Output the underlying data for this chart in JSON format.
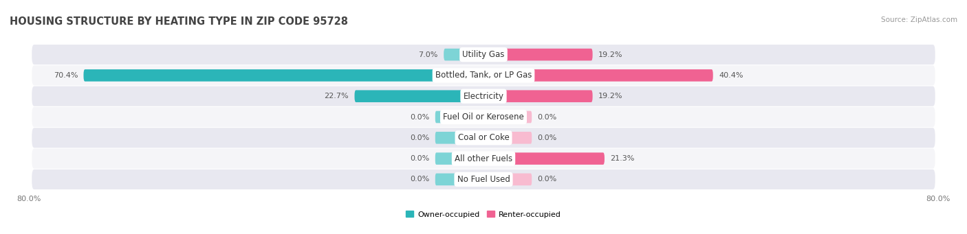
{
  "title": "Housing Structure by Heating Type in Zip Code 95728",
  "source": "Source: ZipAtlas.com",
  "categories": [
    "Utility Gas",
    "Bottled, Tank, or LP Gas",
    "Electricity",
    "Fuel Oil or Kerosene",
    "Coal or Coke",
    "All other Fuels",
    "No Fuel Used"
  ],
  "owner_values": [
    7.0,
    70.4,
    22.7,
    0.0,
    0.0,
    0.0,
    0.0
  ],
  "renter_values": [
    19.2,
    40.4,
    19.2,
    0.0,
    0.0,
    21.3,
    0.0
  ],
  "owner_color_dark": "#2bb5b8",
  "owner_color_light": "#7dd4d6",
  "renter_color_dark": "#f06292",
  "renter_color_light": "#f8bbd0",
  "axis_min": -80.0,
  "axis_max": 80.0,
  "background_color": "#ffffff",
  "row_bg_odd": "#e8e8f0",
  "row_bg_even": "#f5f5f8",
  "title_fontsize": 10.5,
  "label_fontsize": 8.0,
  "cat_fontsize": 8.5,
  "tick_fontsize": 8.0,
  "bar_height": 0.58,
  "zero_bar_size": 8.5
}
